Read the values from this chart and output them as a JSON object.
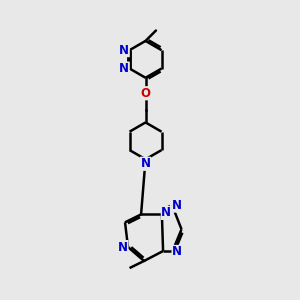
{
  "bg_color": "#e8e8e8",
  "bond_color": "#000000",
  "N_color": "#0000cc",
  "O_color": "#cc0000",
  "bond_width": 1.8,
  "font_size": 8.5,
  "figsize": [
    3.0,
    3.0
  ],
  "dpi": 100,
  "xlim": [
    2.0,
    8.0
  ],
  "ylim": [
    0.5,
    10.5
  ]
}
